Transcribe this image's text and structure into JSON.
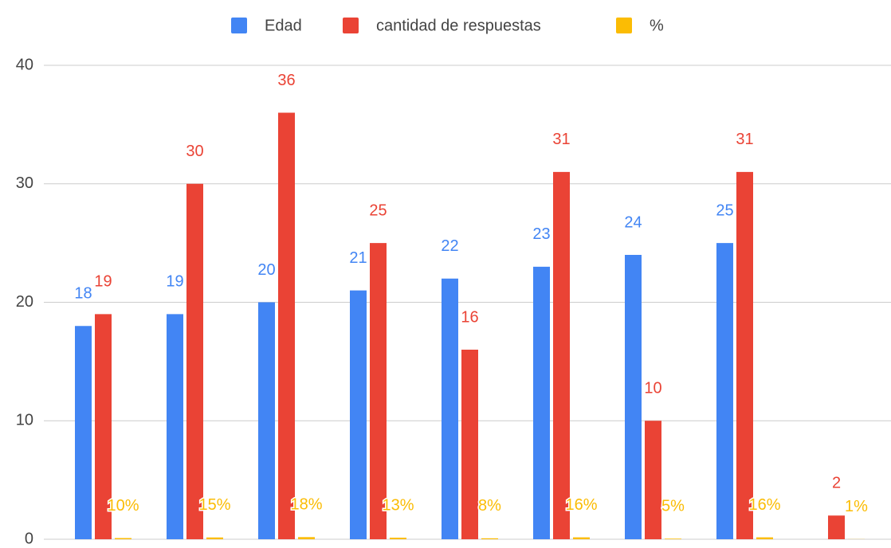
{
  "chart_data": {
    "type": "bar",
    "categories": [
      null,
      null,
      null,
      null,
      null,
      null,
      null,
      null,
      null
    ],
    "series": [
      {
        "name": "Edad",
        "color": "#4285f4",
        "values": [
          18,
          19,
          20,
          21,
          22,
          23,
          24,
          25,
          null
        ]
      },
      {
        "name": "cantidad de respuestas",
        "color": "#ea4335",
        "values": [
          19,
          30,
          36,
          25,
          16,
          31,
          10,
          31,
          2
        ]
      },
      {
        "name": "%",
        "color": "#fbbc04",
        "values": [
          0.1,
          0.15,
          0.18,
          0.13,
          0.08,
          0.16,
          0.05,
          0.16,
          0.01
        ],
        "value_labels": [
          "10%",
          "15%",
          "18%",
          "13%",
          "8%",
          "16%",
          "5%",
          "16%",
          "1%"
        ]
      }
    ],
    "ylim": [
      0,
      40
    ],
    "yticks": [
      0,
      10,
      20,
      30,
      40
    ],
    "grid": true,
    "legend": "top"
  }
}
